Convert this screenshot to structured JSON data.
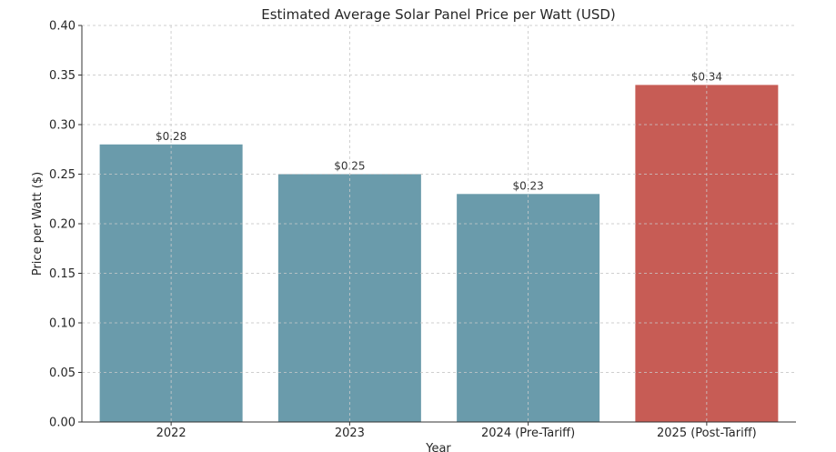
{
  "chart_data": {
    "type": "bar",
    "title": "Estimated Average Solar Panel Price per Watt (USD)",
    "xlabel": "Year",
    "ylabel": "Price per Watt ($)",
    "categories": [
      "2022",
      "2023",
      "2024 (Pre-Tariff)",
      "2025 (Post-Tariff)"
    ],
    "values": [
      0.28,
      0.25,
      0.23,
      0.34
    ],
    "data_labels": [
      "$0.28",
      "$0.25",
      "$0.23",
      "$0.34"
    ],
    "bar_colors": [
      "#6a9bab",
      "#6a9bab",
      "#6a9bab",
      "#c75c55"
    ],
    "ylim": [
      0,
      0.4
    ],
    "yticks": [
      "0.00",
      "0.05",
      "0.10",
      "0.15",
      "0.20",
      "0.25",
      "0.30",
      "0.35",
      "0.40"
    ],
    "grid": true
  }
}
